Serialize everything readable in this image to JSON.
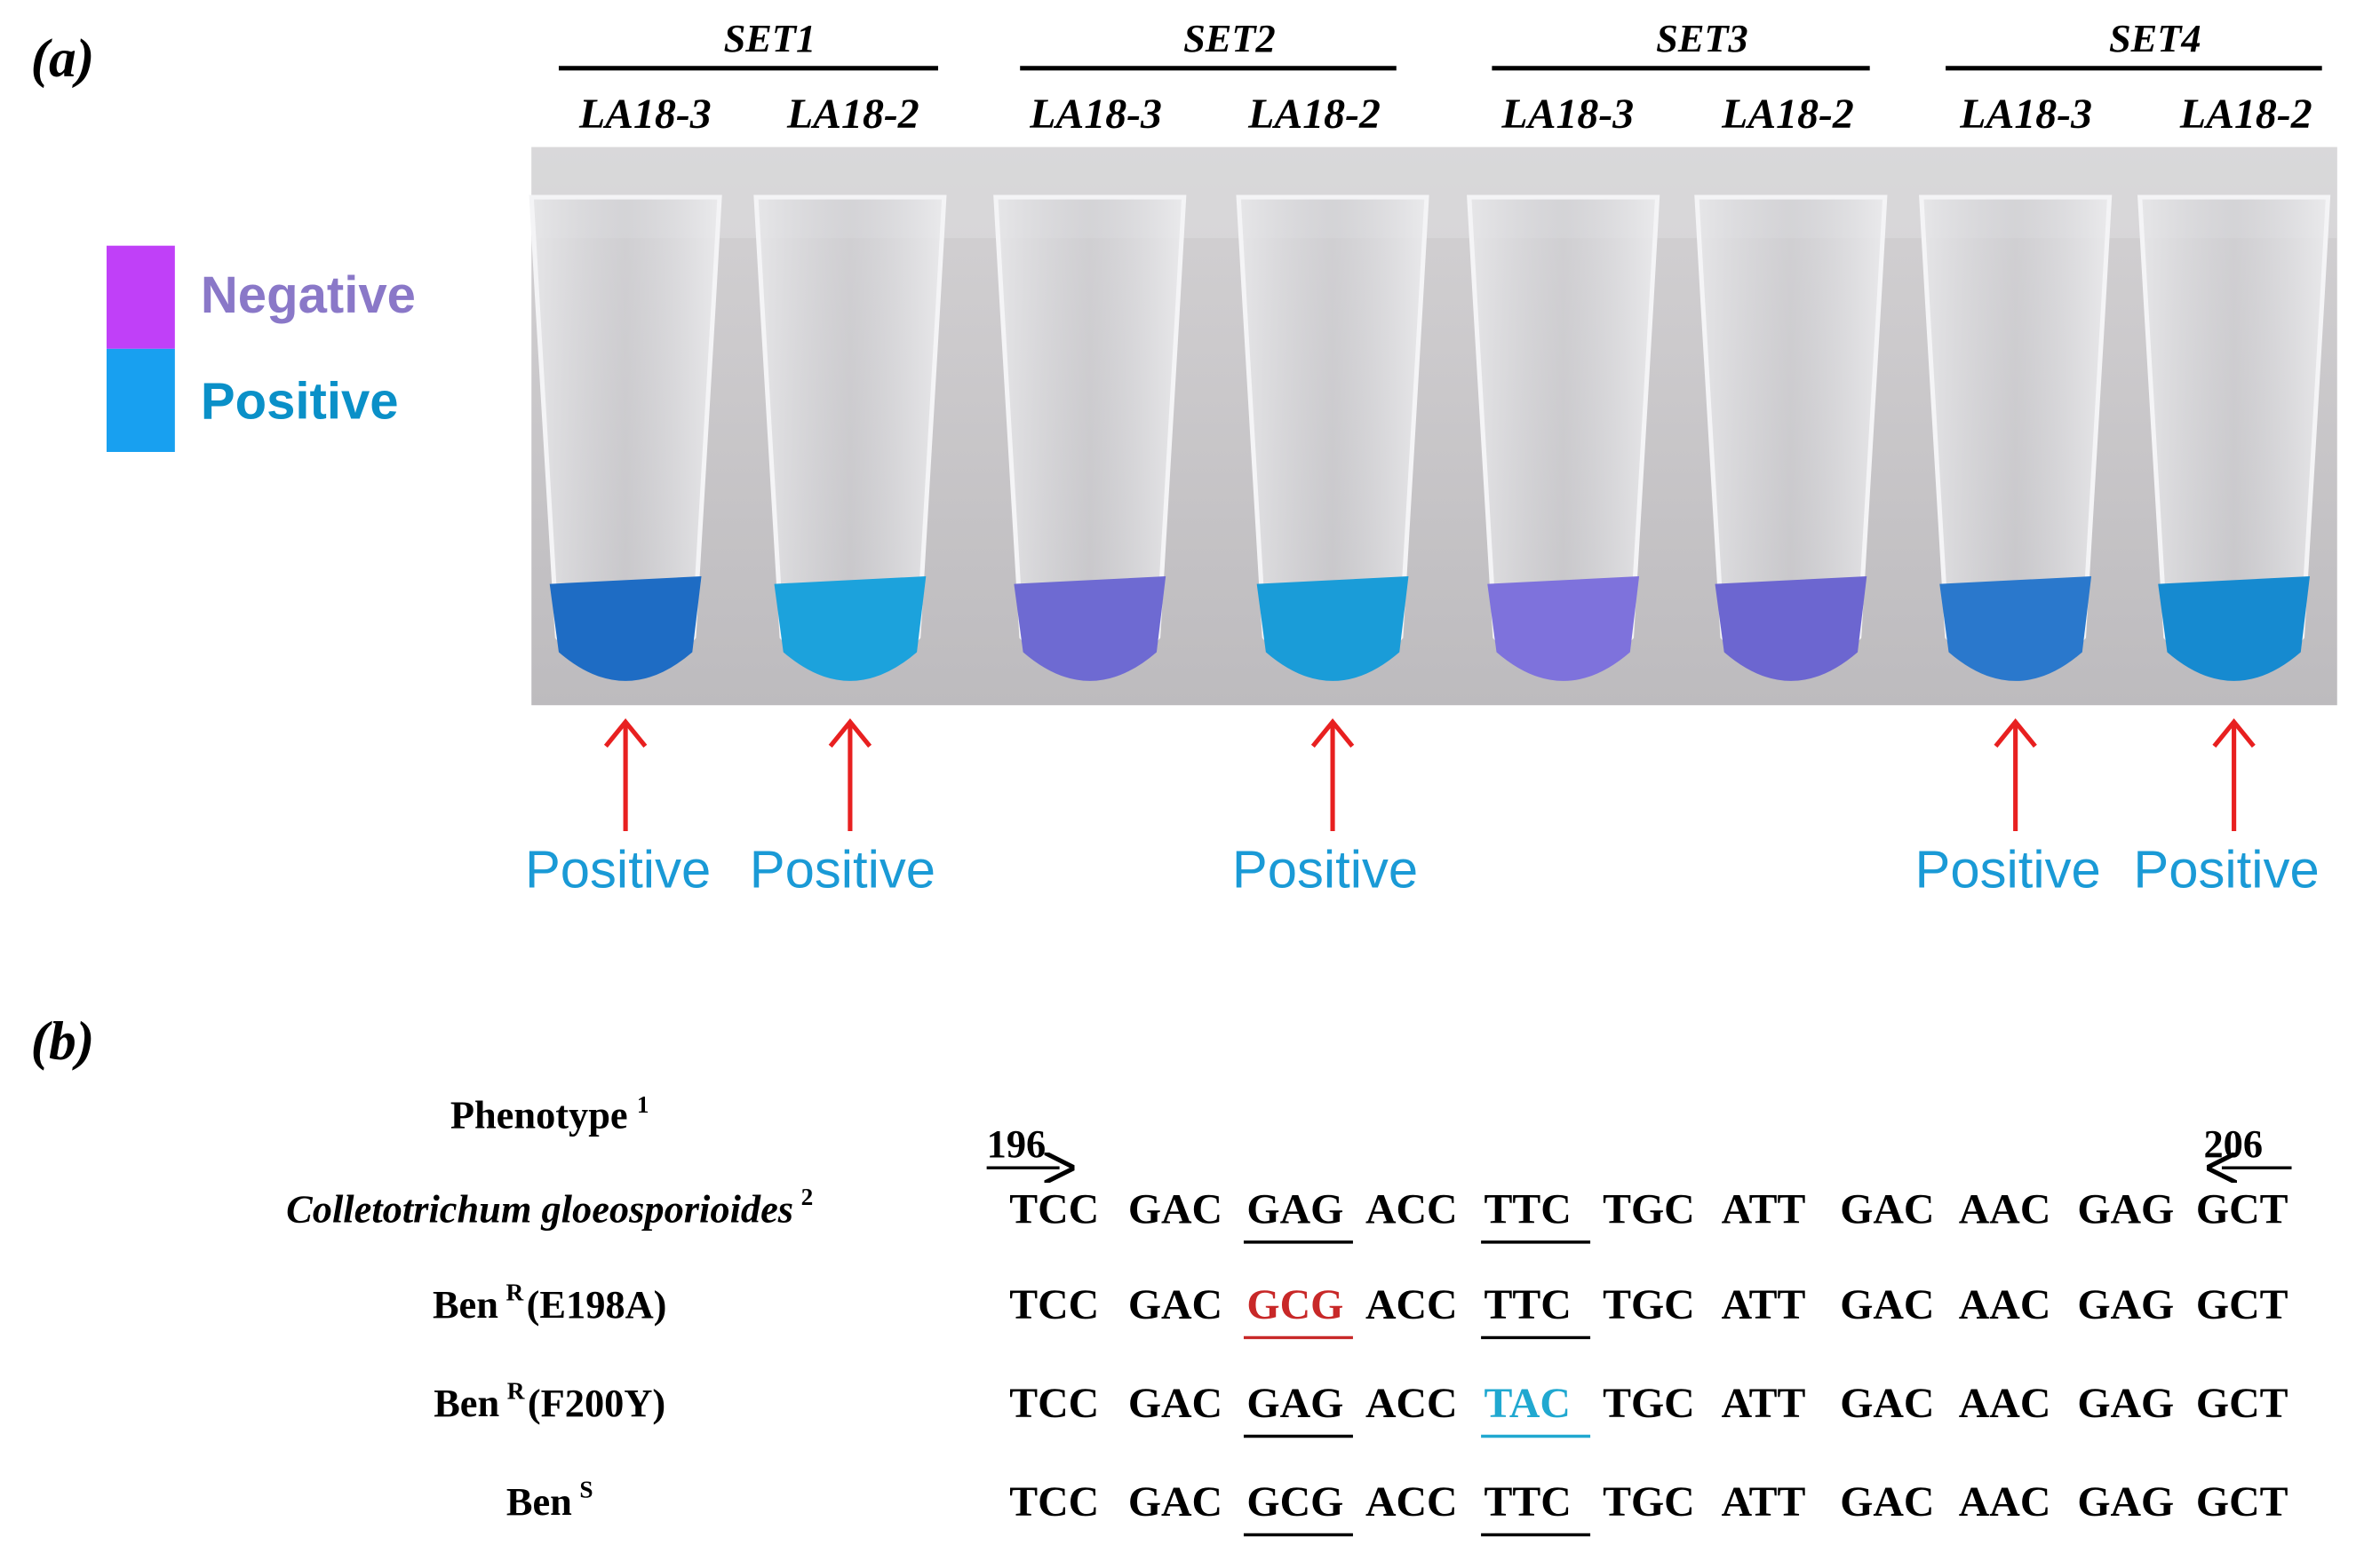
{
  "panel_a": {
    "label": "(a)",
    "legend": [
      {
        "label": "Negative",
        "color": "#c040f8",
        "text_color": "#8a78c8"
      },
      {
        "label": "Positive",
        "color": "#18a0f0",
        "text_color": "#0a90c8"
      }
    ],
    "sets": [
      {
        "name": "SET1",
        "samples": [
          {
            "name": "LA18-3",
            "liquid": "#1e6cc4",
            "result": "Positive"
          },
          {
            "name": "LA18-2",
            "liquid": "#1ca2dc",
            "result": "Positive"
          }
        ]
      },
      {
        "name": "SET2",
        "samples": [
          {
            "name": "LA18-3",
            "liquid": "#6e6ad2",
            "result": null
          },
          {
            "name": "LA18-2",
            "liquid": "#1a9cd8",
            "result": "Positive"
          }
        ]
      },
      {
        "name": "SET3",
        "samples": [
          {
            "name": "LA18-3",
            "liquid": "#7e72dc",
            "result": null
          },
          {
            "name": "LA18-2",
            "liquid": "#6c66d0",
            "result": null
          }
        ]
      },
      {
        "name": "SET4",
        "samples": [
          {
            "name": "LA18-3",
            "liquid": "#2a78cc",
            "result": "Positive"
          },
          {
            "name": "LA18-2",
            "liquid": "#168ad0",
            "result": "Positive"
          }
        ]
      }
    ]
  },
  "panel_b": {
    "label": "(b)",
    "header": "Phenotype",
    "header_note": "1",
    "start": "196",
    "end": "206",
    "underlined": [
      2,
      4
    ],
    "rows": [
      {
        "name": "Colletotrichum gloeosporioides",
        "superscript": "2",
        "suffix": null,
        "italic": true,
        "codons": [
          "TCC",
          "GAC",
          "GAG",
          "ACC",
          "TTC",
          "TGC",
          "ATT",
          "GAC",
          "AAC",
          "GAG",
          "GCT"
        ],
        "highlight": null
      },
      {
        "name": "Ben",
        "superscript": "R",
        "suffix": "(E198A)",
        "italic": false,
        "codons": [
          "TCC",
          "GAC",
          "GCG",
          "ACC",
          "TTC",
          "TGC",
          "ATT",
          "GAC",
          "AAC",
          "GAG",
          "GCT"
        ],
        "highlight": {
          "index": 2,
          "color": "#c82828"
        }
      },
      {
        "name": "Ben",
        "superscript": "R",
        "suffix": "(F200Y)",
        "italic": false,
        "codons": [
          "TCC",
          "GAC",
          "GAG",
          "ACC",
          "TAC",
          "TGC",
          "ATT",
          "GAC",
          "AAC",
          "GAG",
          "GCT"
        ],
        "highlight": {
          "index": 4,
          "color": "#20a8d0"
        }
      },
      {
        "name": "Ben",
        "superscript": "S",
        "suffix": null,
        "italic": false,
        "codons": [
          "TCC",
          "GAC",
          "GCG",
          "ACC",
          "TTC",
          "TGC",
          "ATT",
          "GAC",
          "AAC",
          "GAG",
          "GCT"
        ],
        "highlight": null
      }
    ]
  }
}
